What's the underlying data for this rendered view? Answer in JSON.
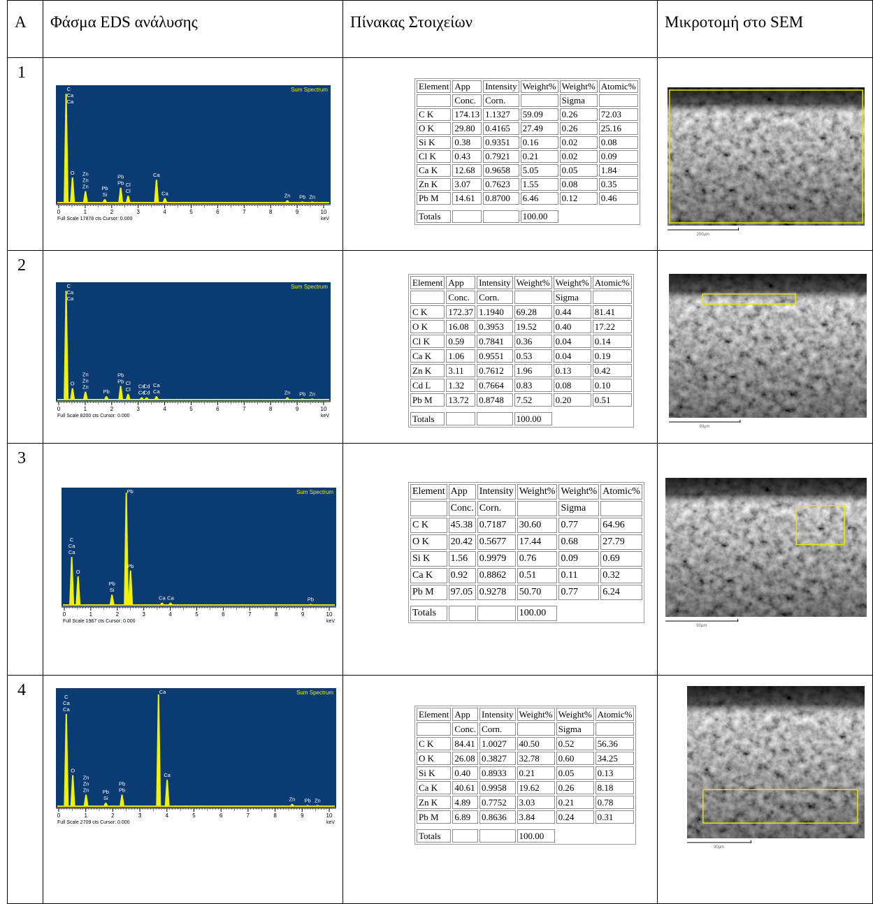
{
  "header": [
    "A",
    "Φάσμα EDS ανάλυσης",
    "Πίνακας Στοιχείων",
    "Μικροτομή στο SEM"
  ],
  "rows": [
    {
      "number": "1",
      "spectrum": {
        "title": "Sum Spectrum",
        "footer": "Full Scale 17878 cts Cursor: 0.000",
        "unit": "keV",
        "xlim": [
          0,
          10
        ],
        "xticks": [
          0,
          1,
          2,
          3,
          4,
          5,
          6,
          7,
          8,
          9,
          10
        ],
        "peaks": [
          {
            "x": 0.28,
            "height": 0.95,
            "labels": [
              "C",
              "Ca",
              "Ca"
            ]
          },
          {
            "x": 0.52,
            "height": 0.22,
            "labels": [
              "O"
            ]
          },
          {
            "x": 1.01,
            "height": 0.1,
            "labels": [
              "Zn",
              "Zn",
              "Zn"
            ]
          },
          {
            "x": 1.74,
            "height": 0.03,
            "labels": [
              "Pb",
              "Si"
            ]
          },
          {
            "x": 2.34,
            "height": 0.13,
            "labels": [
              "Pb",
              "Pb"
            ]
          },
          {
            "x": 2.62,
            "height": 0.06,
            "labels": [
              "Cl",
              "Cl"
            ]
          },
          {
            "x": 3.69,
            "height": 0.2,
            "labels": [
              "Ca"
            ]
          },
          {
            "x": 4.01,
            "height": 0.04,
            "labels": [
              "Ca"
            ]
          },
          {
            "x": 8.63,
            "height": 0.02,
            "labels": [
              "Zn"
            ]
          },
          {
            "x": 9.2,
            "height": 0.01,
            "labels": [
              "Pb"
            ]
          },
          {
            "x": 9.57,
            "height": 0.01,
            "labels": [
              "Zn"
            ]
          }
        ]
      },
      "table": {
        "header_rows": [
          [
            "Element",
            "App",
            "Intensity",
            "Weight%",
            "Weight%",
            "Atomic%"
          ],
          [
            null,
            "Conc.",
            "Corn.",
            null,
            "Sigma",
            null
          ]
        ],
        "rows": [
          [
            "C K",
            "174.13",
            "1.1327",
            "59.09",
            "0.26",
            "72.03"
          ],
          [
            "O K",
            "29.80",
            "0.4165",
            "27.49",
            "0.26",
            "25.16"
          ],
          [
            "Si K",
            "0.38",
            "0.9351",
            "0.16",
            "0.02",
            "0.08"
          ],
          [
            "Cl K",
            "0.43",
            "0.7921",
            "0.21",
            "0.02",
            "0.09"
          ],
          [
            "Ca K",
            "12.68",
            "0.9658",
            "5.05",
            "0.05",
            "1.84"
          ],
          [
            "Zn K",
            "3.07",
            "0.7623",
            "1.55",
            "0.08",
            "0.35"
          ],
          [
            "Pb M",
            "14.61",
            "0.8700",
            "6.46",
            "0.12",
            "0.46"
          ]
        ],
        "totals": [
          "Totals",
          null,
          null,
          "100.00"
        ]
      },
      "sem": {
        "scale": "200μm"
      }
    },
    {
      "number": "2",
      "spectrum": {
        "title": "Sum Spectrum",
        "footer": "Full Scale 8200 cts Cursor: 0.000",
        "unit": "keV",
        "xlim": [
          0,
          10
        ],
        "xticks": [
          0,
          1,
          2,
          3,
          4,
          5,
          6,
          7,
          8,
          9,
          10
        ],
        "peaks": [
          {
            "x": 0.28,
            "height": 0.95,
            "labels": [
              "C",
              "Ca",
              "Ca"
            ]
          },
          {
            "x": 0.52,
            "height": 0.1,
            "labels": [
              "O"
            ]
          },
          {
            "x": 1.01,
            "height": 0.07,
            "labels": [
              "Zn",
              "Zn",
              "Zn"
            ]
          },
          {
            "x": 1.8,
            "height": 0.03,
            "labels": [
              "Pb"
            ]
          },
          {
            "x": 2.34,
            "height": 0.12,
            "labels": [
              "Pb",
              "Pb"
            ]
          },
          {
            "x": 2.62,
            "height": 0.05,
            "labels": [
              "Cl",
              "Cl"
            ]
          },
          {
            "x": 3.13,
            "height": 0.02,
            "labels": [
              "Cd",
              "Cd"
            ]
          },
          {
            "x": 3.32,
            "height": 0.02,
            "labels": [
              "Cd",
              "Cd"
            ]
          },
          {
            "x": 3.69,
            "height": 0.03,
            "labels": [
              "Ca",
              "Ca"
            ]
          },
          {
            "x": 8.63,
            "height": 0.02,
            "labels": [
              "Zn"
            ]
          },
          {
            "x": 9.2,
            "height": 0.01,
            "labels": [
              "Pb"
            ]
          },
          {
            "x": 9.57,
            "height": 0.01,
            "labels": [
              "Zn"
            ]
          }
        ]
      },
      "table": {
        "header_rows": [
          [
            "Element",
            "App",
            "Intensity",
            "Weight%",
            "Weight%",
            "Atomic%"
          ],
          [
            null,
            "Conc.",
            "Corn.",
            null,
            "Sigma",
            null
          ]
        ],
        "rows": [
          [
            "C K",
            "172.37",
            "1.1940",
            "69.28",
            "0.44",
            "81.41"
          ],
          [
            "O K",
            "16.08",
            "0.3953",
            "19.52",
            "0.40",
            "17.22"
          ],
          [
            "Cl K",
            "0.59",
            "0.7841",
            "0.36",
            "0.04",
            "0.14"
          ],
          [
            "Ca K",
            "1.06",
            "0.9551",
            "0.53",
            "0.04",
            "0.19"
          ],
          [
            "Zn K",
            "3.11",
            "0.7612",
            "1.96",
            "0.13",
            "0.42"
          ],
          [
            "Cd L",
            "1.32",
            "0.7664",
            "0.83",
            "0.08",
            "0.10"
          ],
          [
            "Pb M",
            "13.72",
            "0.8748",
            "7.52",
            "0.20",
            "0.51"
          ]
        ],
        "totals": [
          "Totals",
          null,
          null,
          "100.00"
        ]
      },
      "sem": {
        "scale": "90μm"
      }
    },
    {
      "number": "3",
      "spectrum": {
        "title": "Sum Spectrum",
        "footer": "Full Scale 1967 cts Cursor: 0.000",
        "unit": "keV",
        "xlim": [
          0,
          10
        ],
        "xticks": [
          0,
          1,
          2,
          3,
          4,
          5,
          6,
          7,
          8,
          9,
          10
        ],
        "peaks": [
          {
            "x": 0.28,
            "height": 0.42,
            "labels": [
              "C",
              "Ca",
              "Ca"
            ]
          },
          {
            "x": 0.52,
            "height": 0.25,
            "labels": [
              "O"
            ]
          },
          {
            "x": 1.8,
            "height": 0.09,
            "labels": [
              "Pb",
              "Si"
            ]
          },
          {
            "x": 2.34,
            "height": 0.98,
            "labels": [
              "Pb"
            ]
          },
          {
            "x": 2.5,
            "height": 0.3,
            "labels": [
              "Pb"
            ]
          },
          {
            "x": 3.69,
            "height": 0.02,
            "labels": [
              "Ca"
            ]
          },
          {
            "x": 4.01,
            "height": 0.02,
            "labels": [
              "Ca"
            ]
          },
          {
            "x": 9.3,
            "height": 0.01,
            "labels": [
              "Pb"
            ]
          }
        ]
      },
      "table": {
        "header_rows": [
          [
            "Element",
            "App",
            "Intensity",
            "Weight%",
            "Weight%",
            "Atomic%"
          ],
          [
            null,
            "Conc.",
            "Corn.",
            null,
            "Sigma",
            null
          ]
        ],
        "rows": [
          [
            "C K",
            "45.38",
            "0.7187",
            "30.60",
            "0.77",
            "64.96"
          ],
          [
            "O K",
            "20.42",
            "0.5677",
            "17.44",
            "0.68",
            "27.79"
          ],
          [
            "Si K",
            "1.56",
            "0.9979",
            "0.76",
            "0.09",
            "0.69"
          ],
          [
            "Ca K",
            "0.92",
            "0.8862",
            "0.51",
            "0.11",
            "0.32"
          ],
          [
            "Pb M",
            "97.05",
            "0.9278",
            "50.70",
            "0.77",
            "6.24"
          ]
        ],
        "totals": [
          "Totals",
          null,
          null,
          "100.00"
        ]
      },
      "sem": {
        "scale": "90μm"
      }
    },
    {
      "number": "4",
      "spectrum": {
        "title": "Sum Spectrum",
        "footer": "Full Scale 2709 cts Cursor: 0.000",
        "unit": "keV",
        "xlim": [
          0,
          10
        ],
        "xticks": [
          0,
          1,
          2,
          3,
          4,
          5,
          6,
          7,
          8,
          9,
          10
        ],
        "peaks": [
          {
            "x": 0.28,
            "height": 0.8,
            "labels": [
              "C",
              "Ca",
              "Ca"
            ]
          },
          {
            "x": 0.52,
            "height": 0.27,
            "labels": [
              "O"
            ]
          },
          {
            "x": 1.01,
            "height": 0.1,
            "labels": [
              "Zn",
              "Zn",
              "Zn"
            ]
          },
          {
            "x": 1.74,
            "height": 0.03,
            "labels": [
              "Pb",
              "Si"
            ]
          },
          {
            "x": 2.34,
            "height": 0.1,
            "labels": [
              "Pb",
              "Pb"
            ]
          },
          {
            "x": 3.69,
            "height": 0.97,
            "labels": [
              "Ca"
            ]
          },
          {
            "x": 4.01,
            "height": 0.23,
            "labels": [
              "Ca"
            ]
          },
          {
            "x": 8.63,
            "height": 0.02,
            "labels": [
              "Zn"
            ]
          },
          {
            "x": 9.2,
            "height": 0.01,
            "labels": [
              "Pb"
            ]
          },
          {
            "x": 9.57,
            "height": 0.01,
            "labels": [
              "Zn"
            ]
          }
        ]
      },
      "table": {
        "header_rows": [
          [
            "Element",
            "App",
            "Intensity",
            "Weight%",
            "Weight%",
            "Atomic%"
          ],
          [
            null,
            "Conc.",
            "Corn.",
            null,
            "Sigma",
            null
          ]
        ],
        "rows": [
          [
            "C K",
            "84.41",
            "1.0027",
            "40.50",
            "0.52",
            "56.36"
          ],
          [
            "O K",
            "26.08",
            "0.3827",
            "32.78",
            "0.60",
            "34.25"
          ],
          [
            "Si K",
            "0.40",
            "0.8933",
            "0.21",
            "0.05",
            "0.13"
          ],
          [
            "Ca K",
            "40.61",
            "0.9958",
            "19.62",
            "0.26",
            "8.18"
          ],
          [
            "Zn K",
            "4.89",
            "0.7752",
            "3.03",
            "0.21",
            "0.78"
          ],
          [
            "Pb M",
            "6.89",
            "0.8636",
            "3.84",
            "0.24",
            "0.31"
          ]
        ],
        "totals": [
          "Totals",
          null,
          null,
          "100.00"
        ]
      },
      "sem": {
        "scale": "90μm"
      }
    }
  ]
}
